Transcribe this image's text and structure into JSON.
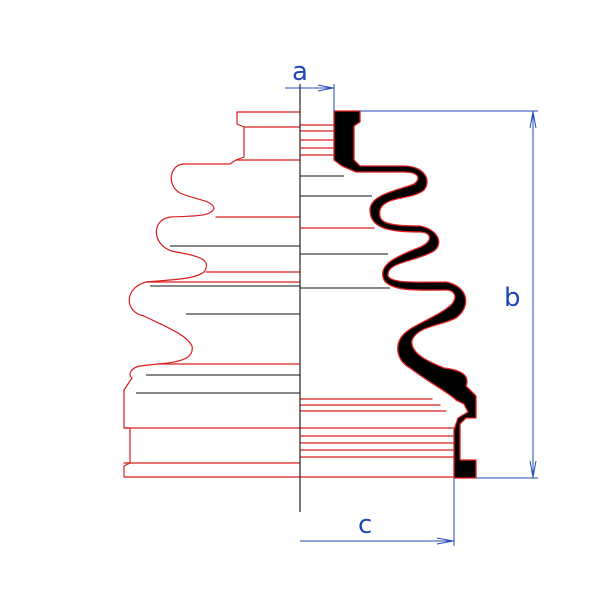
{
  "dimensions": {
    "a": "a",
    "b": "b",
    "c": "c"
  },
  "colors": {
    "outline": "#d81e1e",
    "section_fill": "#000000",
    "dimension": "#2248b8",
    "axis": "#222222",
    "background": "#ffffff"
  }
}
